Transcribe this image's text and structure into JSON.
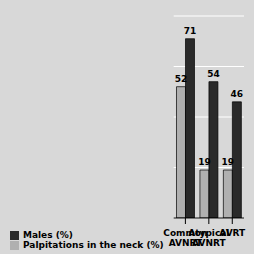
{
  "chart_data": {
    "type": "bar",
    "categories": [
      "Common\nAVNRT",
      "Atypical\nAVNRT",
      "AVRT"
    ],
    "series": [
      {
        "name": "Palpitations in the neck (%)",
        "color": "#b0b0b0",
        "values": [
          52,
          19,
          19
        ]
      },
      {
        "name": "Males (%)",
        "color": "#2a2a2a",
        "values": [
          71,
          54,
          46
        ]
      }
    ],
    "ylim": [
      0,
      80
    ],
    "yticks": [
      0,
      20,
      40,
      60,
      80
    ],
    "grid": true,
    "data_labels": true,
    "tick_labels": "x",
    "legend": "bottom"
  }
}
